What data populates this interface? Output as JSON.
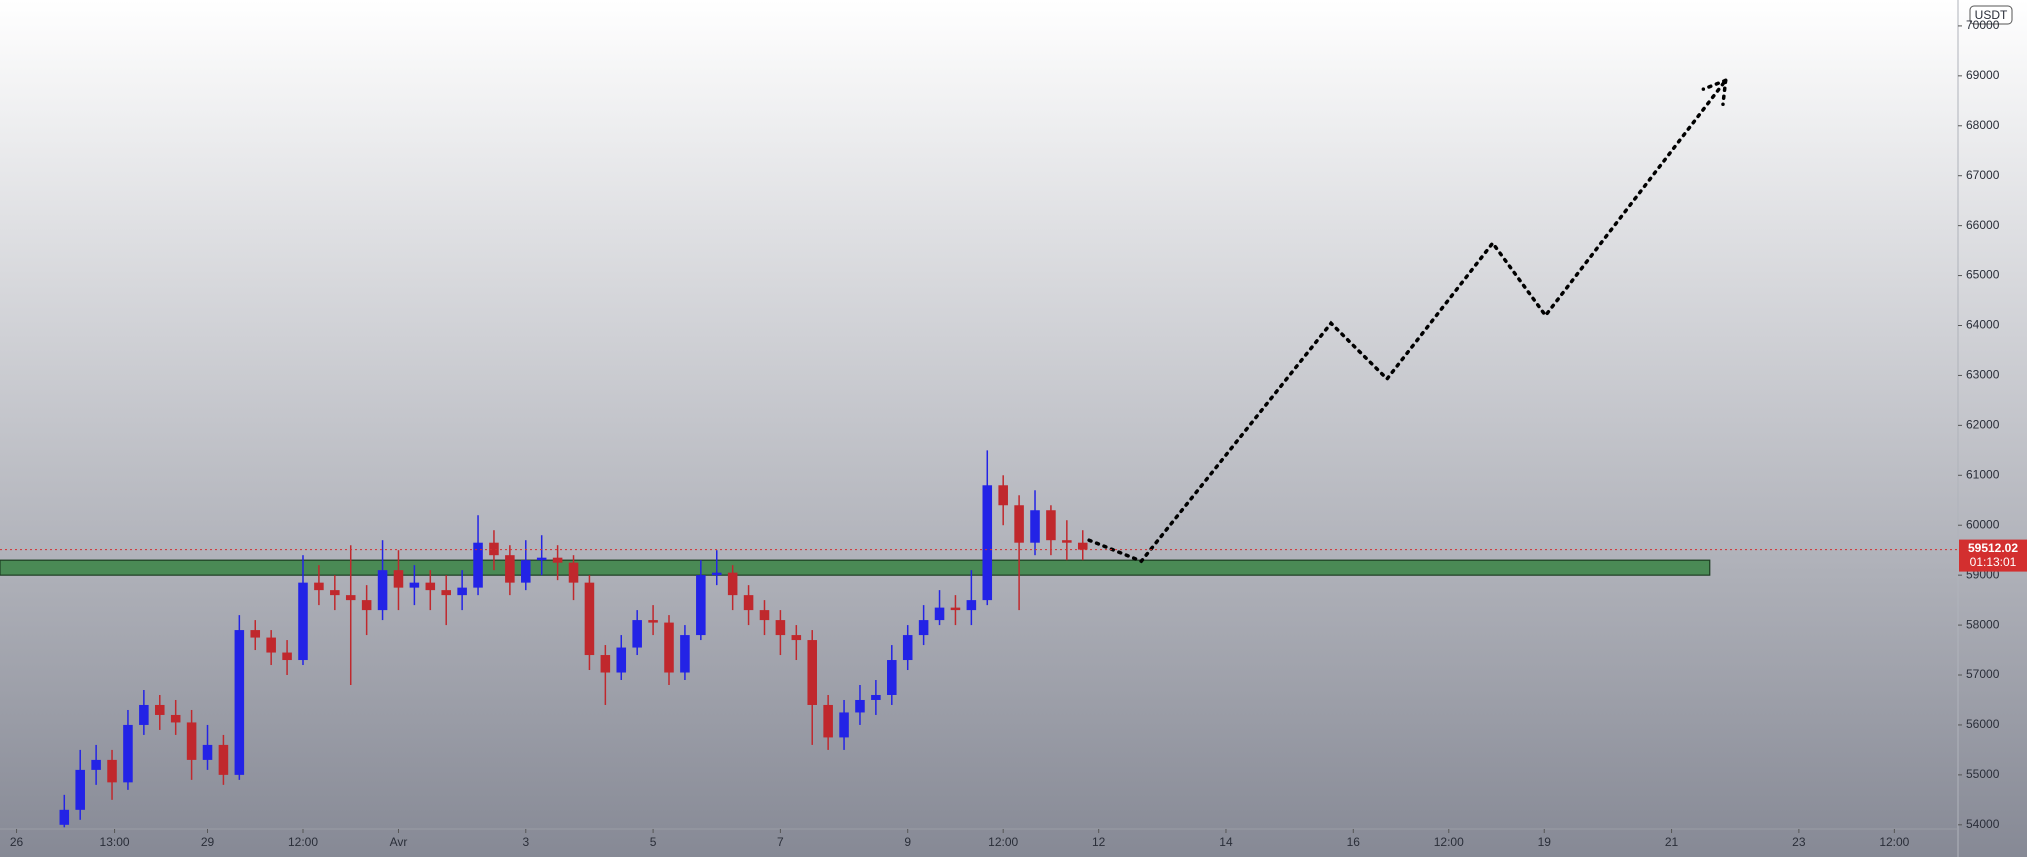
{
  "chart_data": {
    "type": "candlestick",
    "currency": "USDT",
    "x": [
      0.75,
      1,
      1.25,
      1.5,
      1.75,
      2,
      2.25,
      2.5,
      2.75,
      3,
      3.25,
      3.5,
      3.75,
      4,
      4.25,
      4.5,
      4.75,
      5,
      5.25,
      5.5,
      5.75,
      6,
      6.25,
      6.5,
      6.75,
      7,
      7.25,
      7.5,
      7.75,
      8,
      8.25,
      8.5,
      8.75,
      9,
      9.25,
      9.5,
      9.75,
      10,
      10.25,
      10.5,
      10.75,
      11,
      11.25,
      11.5,
      11.75,
      12,
      12.25,
      12.5,
      12.75,
      13,
      13.25,
      13.5,
      13.75,
      14,
      14.25,
      14.5,
      14.75,
      15,
      15.25,
      15.5,
      15.75,
      16,
      16.25,
      16.5,
      16.75
    ],
    "open": [
      54000,
      54300,
      55100,
      55300,
      54850,
      56000,
      56400,
      56200,
      56050,
      55300,
      55600,
      55000,
      57900,
      57750,
      57450,
      57300,
      58850,
      58700,
      58600,
      58500,
      58300,
      59100,
      58750,
      58850,
      58700,
      58600,
      58750,
      59650,
      59400,
      58850,
      59300,
      59350,
      59250,
      58850,
      57400,
      57050,
      57550,
      58100,
      58050,
      57050,
      57800,
      59000,
      59050,
      58600,
      58300,
      58100,
      57800,
      57700,
      56400,
      55750,
      56250,
      56500,
      56600,
      57300,
      57800,
      58100,
      58350,
      58300,
      58500,
      60800,
      60400,
      59650,
      60300,
      59700,
      59650
    ],
    "high": [
      54600,
      55500,
      55600,
      55500,
      56300,
      56700,
      56600,
      56500,
      56300,
      56000,
      55800,
      58200,
      58100,
      57900,
      57700,
      59400,
      59200,
      59000,
      59600,
      58800,
      59700,
      59500,
      59200,
      59100,
      59000,
      59100,
      60200,
      59900,
      59600,
      59700,
      59800,
      59600,
      59400,
      59000,
      57600,
      57800,
      58300,
      58400,
      58200,
      58000,
      59300,
      59500,
      59200,
      58800,
      58500,
      58300,
      58000,
      57900,
      56600,
      56500,
      56800,
      56900,
      57600,
      58000,
      58400,
      58700,
      58600,
      59100,
      61500,
      61000,
      60600,
      60700,
      60400,
      60100,
      59900
    ],
    "low": [
      53950,
      54100,
      54800,
      54500,
      54700,
      55800,
      55900,
      55800,
      54900,
      55100,
      54800,
      54900,
      57500,
      57200,
      57000,
      57200,
      58400,
      58300,
      56800,
      57800,
      58100,
      58300,
      58400,
      58300,
      58000,
      58300,
      58600,
      59100,
      58600,
      58700,
      59000,
      58900,
      58500,
      57100,
      56400,
      56900,
      57400,
      57800,
      56800,
      56900,
      57700,
      58800,
      58300,
      58000,
      57800,
      57400,
      57300,
      55600,
      55500,
      55500,
      56000,
      56200,
      56400,
      57100,
      57600,
      58000,
      58000,
      58000,
      58400,
      60000,
      58300,
      59400,
      59400,
      59300,
      59300
    ],
    "close": [
      54300,
      55100,
      55300,
      54850,
      56000,
      56400,
      56200,
      56050,
      55300,
      55600,
      55000,
      57900,
      57750,
      57450,
      57300,
      58850,
      58700,
      58600,
      58500,
      58300,
      59100,
      58750,
      58850,
      58700,
      58600,
      58750,
      59650,
      59400,
      58850,
      59300,
      59350,
      59250,
      58850,
      57400,
      57050,
      57550,
      58100,
      58050,
      57050,
      57800,
      59000,
      59050,
      58600,
      58300,
      58100,
      57800,
      57700,
      56400,
      55750,
      56250,
      56500,
      56600,
      57300,
      57800,
      58100,
      58350,
      58300,
      58500,
      60800,
      60400,
      59650,
      60300,
      59700,
      59650,
      59512
    ],
    "up_color": "#2323e6",
    "down_color": "#c0282d",
    "xlim": [
      -0.26,
      30.5
    ],
    "ylim": [
      53916,
      70519
    ],
    "grid": false,
    "yticks": [
      54000,
      55000,
      56000,
      57000,
      58000,
      59000,
      60000,
      61000,
      62000,
      63000,
      64000,
      65000,
      66000,
      67000,
      68000,
      69000,
      70000
    ],
    "xticks": [
      {
        "value": 0,
        "label": "26"
      },
      {
        "value": 1.54,
        "label": "13:00"
      },
      {
        "value": 3,
        "label": "29"
      },
      {
        "value": 4.5,
        "label": "12:00"
      },
      {
        "value": 6,
        "label": "Avr"
      },
      {
        "value": 8,
        "label": "3"
      },
      {
        "value": 10,
        "label": "5"
      },
      {
        "value": 12,
        "label": "7"
      },
      {
        "value": 14,
        "label": "9"
      },
      {
        "value": 15.5,
        "label": "12:00"
      },
      {
        "value": 17,
        "label": "12"
      },
      {
        "value": 19,
        "label": "14"
      },
      {
        "value": 21,
        "label": "16"
      },
      {
        "value": 22.5,
        "label": "12:00"
      },
      {
        "value": 24,
        "label": "19"
      },
      {
        "value": 26,
        "label": "21"
      },
      {
        "value": 28,
        "label": "23"
      },
      {
        "value": 29.5,
        "label": "12:00"
      }
    ],
    "zone": {
      "x_end": 26.6,
      "low": 59000,
      "high": 59300,
      "color": "#4a8a55"
    },
    "projection": {
      "x": [
        16.85,
        17.67,
        20.65,
        21.53,
        23.19,
        24.02,
        26.85
      ],
      "values": [
        59700,
        59280,
        64045,
        62930,
        65650,
        64200,
        68910
      ]
    },
    "last_price": {
      "value": 59512.02,
      "countdown": "01:13:01",
      "color": "#d32f2f"
    }
  }
}
